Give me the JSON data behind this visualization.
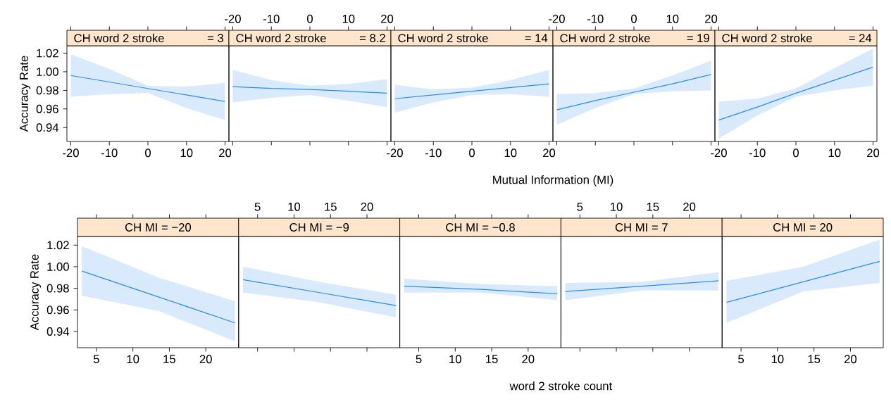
{
  "chart_data": [
    {
      "type": "line",
      "title": "CH word 2 stroke",
      "subtitle": "= 3",
      "ylabel": "Accuracy Rate",
      "xlim": [
        -21,
        21
      ],
      "xticks": [
        -20,
        -10,
        0,
        10,
        20
      ],
      "ylim": [
        0.925,
        1.028
      ],
      "yticks": [
        0.94,
        0.96,
        0.98,
        {
          "value": 1.0,
          "label": "1.00"
        },
        1.02
      ],
      "series": [
        {
          "color": "#2b8cf0",
          "x": [
            -20,
            -10,
            0,
            10,
            20
          ],
          "values": [
            0.996,
            0.989,
            0.982,
            0.975,
            0.968
          ],
          "lower": [
            0.973,
            0.976,
            0.977,
            0.961,
            0.948
          ],
          "upper": [
            1.019,
            1.003,
            0.985,
            0.984,
            0.988
          ]
        }
      ]
    },
    {
      "type": "line",
      "title": "CH word 2 stroke",
      "subtitle": "= 8.2",
      "xlim": [
        -21,
        21
      ],
      "xticks": [
        -20,
        -10,
        0,
        10,
        20
      ],
      "ylim": [
        0.925,
        1.028
      ],
      "tick_labels": "x",
      "series": [
        {
          "color": "#2b8cf0",
          "x": [
            -20,
            -10,
            0,
            10,
            20
          ],
          "values": [
            0.984,
            0.982,
            0.981,
            0.979,
            0.977
          ],
          "lower": [
            0.967,
            0.972,
            0.975,
            0.969,
            0.962
          ],
          "upper": [
            1.002,
            0.991,
            0.985,
            0.987,
            0.992
          ]
        }
      ]
    },
    {
      "type": "line",
      "title": "CH word 2 stroke",
      "subtitle": "= 14",
      "xlabel": "Mutual Information (MI)",
      "xlim": [
        -21,
        21
      ],
      "xticks": [
        -20,
        -10,
        0,
        10,
        20
      ],
      "ylim": [
        0.925,
        1.028
      ],
      "tick_labels": "x",
      "series": [
        {
          "color": "#2b8cf0",
          "x": [
            -20,
            -10,
            0,
            10,
            20
          ],
          "values": [
            0.971,
            0.975,
            0.979,
            0.983,
            0.987
          ],
          "lower": [
            0.956,
            0.967,
            0.975,
            0.976,
            0.973
          ],
          "upper": [
            0.986,
            0.981,
            0.983,
            0.991,
            1.002
          ]
        }
      ]
    },
    {
      "type": "line",
      "title": "CH word 2 stroke",
      "subtitle": "= 19",
      "xlim": [
        -21,
        21
      ],
      "xticks": [
        -20,
        -10,
        0,
        10,
        20
      ],
      "ylim": [
        0.925,
        1.028
      ],
      "tick_labels": "x",
      "series": [
        {
          "color": "#2b8cf0",
          "x": [
            -20,
            -10,
            0,
            10,
            20
          ],
          "values": [
            0.959,
            0.969,
            0.978,
            0.987,
            0.997
          ],
          "lower": [
            0.943,
            0.961,
            0.976,
            0.979,
            0.98
          ],
          "upper": [
            0.976,
            0.977,
            0.982,
            0.996,
            1.012
          ]
        }
      ]
    },
    {
      "type": "line",
      "title": "CH word 2 stroke",
      "subtitle": "= 24",
      "xlim": [
        -21,
        21
      ],
      "xticks": [
        -20,
        -10,
        0,
        10,
        20
      ],
      "ylim": [
        0.925,
        1.028
      ],
      "tick_labels": "x",
      "series": [
        {
          "color": "#2b8cf0",
          "x": [
            -20,
            -10,
            0,
            10,
            20
          ],
          "values": [
            0.948,
            0.962,
            0.977,
            0.991,
            1.005
          ],
          "lower": [
            0.928,
            0.953,
            0.973,
            0.98,
            0.985
          ],
          "upper": [
            0.968,
            0.971,
            0.982,
            1.004,
            1.025
          ]
        }
      ]
    },
    {
      "type": "line",
      "title": "CH MI  = −20",
      "ylabel": "Accuracy Rate",
      "xlim": [
        2.4,
        24.5
      ],
      "xticks": [
        5,
        10,
        15,
        20
      ],
      "ylim": [
        0.925,
        1.028
      ],
      "yticks": [
        0.94,
        0.96,
        0.98,
        {
          "value": 1.0,
          "label": "1.00"
        },
        1.02
      ],
      "series": [
        {
          "color": "#2b8cf0",
          "x": [
            3,
            13.5,
            24
          ],
          "values": [
            0.996,
            0.972,
            0.948
          ],
          "lower": [
            0.973,
            0.959,
            0.931
          ],
          "upper": [
            1.019,
            0.99,
            0.968
          ]
        }
      ]
    },
    {
      "type": "line",
      "title": "CH MI  = −9",
      "xlim": [
        2.4,
        24.5
      ],
      "xticks": [
        5,
        10,
        15,
        20
      ],
      "ylim": [
        0.925,
        1.028
      ],
      "tick_labels": "x",
      "series": [
        {
          "color": "#2b8cf0",
          "x": [
            3,
            13.5,
            24
          ],
          "values": [
            0.988,
            0.976,
            0.964
          ],
          "lower": [
            0.976,
            0.967,
            0.953
          ],
          "upper": [
            1.0,
            0.986,
            0.974
          ]
        }
      ]
    },
    {
      "type": "line",
      "title": "CH MI  = −0.8",
      "xlabel": "word 2 stroke count",
      "xlim": [
        2.4,
        24.5
      ],
      "xticks": [
        5,
        10,
        15,
        20
      ],
      "ylim": [
        0.925,
        1.028
      ],
      "tick_labels": "x",
      "series": [
        {
          "color": "#2b8cf0",
          "x": [
            3,
            13.5,
            24
          ],
          "values": [
            0.982,
            0.979,
            0.975
          ],
          "lower": [
            0.976,
            0.976,
            0.969
          ],
          "upper": [
            0.989,
            0.984,
            0.982
          ]
        }
      ]
    },
    {
      "type": "line",
      "title": "CH MI  = 7",
      "xlim": [
        2.4,
        24.5
      ],
      "xticks": [
        5,
        10,
        15,
        20
      ],
      "ylim": [
        0.925,
        1.028
      ],
      "tick_labels": "x",
      "series": [
        {
          "color": "#2b8cf0",
          "x": [
            3,
            13.5,
            24
          ],
          "values": [
            0.977,
            0.982,
            0.987
          ],
          "lower": [
            0.969,
            0.978,
            0.978
          ],
          "upper": [
            0.985,
            0.986,
            0.995
          ]
        }
      ]
    },
    {
      "type": "line",
      "title": "CH MI  = 20",
      "xlim": [
        2.4,
        24.5
      ],
      "xticks": [
        5,
        10,
        15,
        20
      ],
      "ylim": [
        0.925,
        1.028
      ],
      "tick_labels": "x",
      "series": [
        {
          "color": "#2b8cf0",
          "x": [
            3,
            13.5,
            24
          ],
          "values": [
            0.967,
            0.986,
            1.005
          ],
          "lower": [
            0.948,
            0.977,
            0.985
          ],
          "upper": [
            0.987,
            1.0,
            1.025
          ]
        }
      ]
    }
  ]
}
